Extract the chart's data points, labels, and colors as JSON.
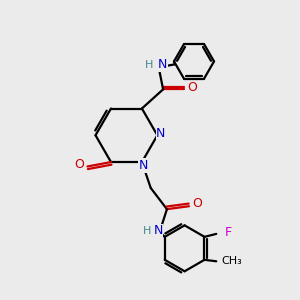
{
  "bg_color": "#ebebeb",
  "bond_color": "#000000",
  "N_color": "#0000cc",
  "O_color": "#cc0000",
  "F_color": "#cc00cc",
  "H_color": "#448888",
  "line_width": 1.6,
  "fig_width": 3.0,
  "fig_height": 3.0,
  "dpi": 100,
  "xlim": [
    0,
    10
  ],
  "ylim": [
    0,
    10
  ]
}
